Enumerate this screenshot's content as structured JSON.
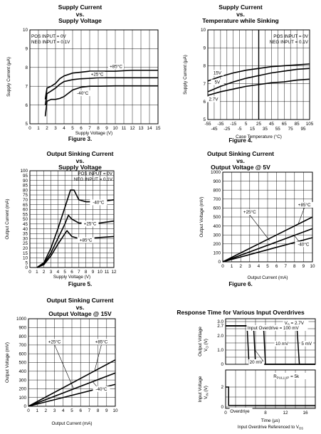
{
  "chart_data": [
    {
      "type": "line",
      "title_lines": [
        "Supply Current",
        "vs.",
        "Supply Voltage"
      ],
      "xlabel": "Supply Voltage (V)",
      "ylabel": "Supply Current (µA)",
      "xlim": [
        0,
        15
      ],
      "ylim": [
        5,
        10
      ],
      "xticks": [
        "0",
        "1",
        "2",
        "3",
        "4",
        "5",
        "6",
        "7",
        "8",
        "9",
        "10",
        "11",
        "12",
        "13",
        "14",
        "15"
      ],
      "yticks": [
        "5",
        "6",
        "7",
        "8",
        "9",
        "10"
      ],
      "grid": true,
      "note_lines": [
        "POS INPUT = 0V",
        "NEG INPUT = 0.1V"
      ],
      "figure_label": "Figure 3.",
      "series": [
        {
          "name": "+85°C",
          "x": [
            1.8,
            2.0,
            2.5,
            3.0,
            3.5,
            4.0,
            5.0,
            6.0,
            7.0,
            8.0,
            10.0,
            12.0,
            15.0
          ],
          "y": [
            6.3,
            6.9,
            7.0,
            7.15,
            7.4,
            7.55,
            7.7,
            7.75,
            7.8,
            7.8,
            7.8,
            7.85,
            7.85
          ]
        },
        {
          "name": "+25°C",
          "x": [
            1.8,
            2.0,
            2.5,
            3.0,
            3.5,
            4.0,
            5.0,
            6.0,
            7.0,
            8.0,
            10.0,
            12.0,
            15.0
          ],
          "y": [
            6.0,
            6.6,
            6.75,
            6.9,
            7.1,
            7.25,
            7.35,
            7.4,
            7.42,
            7.45,
            7.45,
            7.45,
            7.45
          ]
        },
        {
          "name": "-40°C",
          "x": [
            1.8,
            2.0,
            2.5,
            3.0,
            3.5,
            4.0,
            5.0,
            6.0,
            7.0,
            8.0,
            10.0,
            12.0,
            15.0
          ],
          "y": [
            5.4,
            6.2,
            6.3,
            6.3,
            6.35,
            6.45,
            6.8,
            6.95,
            7.0,
            7.0,
            7.02,
            7.02,
            7.02
          ]
        }
      ]
    },
    {
      "type": "line",
      "title_lines": [
        "Supply Current",
        "vs.",
        "Temperature while Sinking"
      ],
      "xlabel": "Case Temperature (°C)",
      "ylabel": "Supply Current (µA)",
      "xlim": [
        -55,
        105
      ],
      "ylim": [
        5,
        10
      ],
      "xticks_top": [
        "-55",
        "-35",
        "-15",
        "5",
        "25",
        "45",
        "65",
        "85",
        "105"
      ],
      "xticks_bottom": [
        "-45",
        "-25",
        "-5",
        "15",
        "35",
        "55",
        "75",
        "95"
      ],
      "yticks": [
        "5",
        "6",
        "7",
        "8",
        "9",
        "10"
      ],
      "grid": true,
      "note_lines": [
        "POS INPUT = 0V",
        "NEG INPUT = 0.1V"
      ],
      "figure_label": "Figure 4.",
      "series": [
        {
          "name": "15V",
          "x": [
            -55,
            -35,
            -15,
            5,
            25,
            45,
            65,
            85,
            105
          ],
          "y": [
            7.15,
            7.4,
            7.6,
            7.75,
            7.85,
            7.95,
            8.0,
            8.05,
            8.1
          ]
        },
        {
          "name": "5V",
          "x": [
            -55,
            -35,
            -15,
            5,
            25,
            45,
            65,
            85,
            105
          ],
          "y": [
            6.55,
            6.85,
            7.1,
            7.3,
            7.45,
            7.6,
            7.7,
            7.8,
            7.85
          ]
        },
        {
          "name": "2.7V",
          "x": [
            -55,
            -35,
            -15,
            5,
            25,
            45,
            65,
            85,
            105
          ],
          "y": [
            6.35,
            6.55,
            6.7,
            6.85,
            6.95,
            7.05,
            7.1,
            7.2,
            7.25
          ]
        }
      ]
    },
    {
      "type": "line",
      "title_lines": [
        "Output Sinking Current",
        "vs.",
        "Supply Voltage"
      ],
      "xlabel": "Supply Voltage (V)",
      "ylabel": "Output Current (mA)",
      "xlim": [
        0,
        12
      ],
      "ylim": [
        0,
        100
      ],
      "xticks": [
        "0",
        "1",
        "2",
        "3",
        "4",
        "5",
        "6",
        "7",
        "8",
        "9",
        "10",
        "11",
        "12"
      ],
      "yticks": [
        "0",
        "5",
        "10",
        "15",
        "20",
        "25",
        "30",
        "35",
        "40",
        "45",
        "50",
        "55",
        "60",
        "65",
        "70",
        "75",
        "80",
        "85",
        "90",
        "95",
        "100"
      ],
      "grid": true,
      "note_lines": [
        "POS INPUT = 0V",
        "NEG INPUT = 0.1V"
      ],
      "figure_label": "Figure 5.",
      "series": [
        {
          "name": "-40°C",
          "x": [
            1.0,
            2.0,
            3.0,
            4.0,
            5.0,
            5.8,
            6.3,
            7.0,
            8.0,
            10.0,
            12.0
          ],
          "y": [
            0,
            5,
            20,
            40,
            62,
            80,
            80,
            70,
            68,
            68,
            70
          ]
        },
        {
          "name": "+25°C",
          "x": [
            1.0,
            2.0,
            3.0,
            4.0,
            5.0,
            5.5,
            6.0,
            7.0,
            8.0,
            10.0,
            12.0
          ],
          "y": [
            0,
            4,
            15,
            30,
            45,
            54,
            50,
            46,
            46,
            46,
            48
          ]
        },
        {
          "name": "+85°C",
          "x": [
            1.0,
            2.0,
            3.0,
            4.0,
            5.0,
            5.3,
            6.0,
            7.0,
            8.0,
            10.0,
            12.0
          ],
          "y": [
            0,
            3,
            12,
            24,
            35,
            38,
            32,
            30,
            30,
            31,
            32
          ]
        }
      ]
    },
    {
      "type": "line",
      "title_lines": [
        "Output Sinking Current",
        "vs.",
        "Output Voltage @ 5V"
      ],
      "xlabel": "Output Current (mA)",
      "ylabel": "Output Voltage (mV)",
      "xlim": [
        0,
        10
      ],
      "ylim": [
        0,
        1000
      ],
      "xticks": [
        "0",
        "1",
        "2",
        "3",
        "4",
        "5",
        "6",
        "7",
        "8",
        "9",
        "10"
      ],
      "yticks": [
        "0",
        "100",
        "200",
        "300",
        "400",
        "500",
        "600",
        "700",
        "800",
        "900",
        "1000"
      ],
      "grid": true,
      "figure_label": "Figure 6.",
      "series": [
        {
          "name": "+85°C",
          "x": [
            0,
            10
          ],
          "y": [
            0,
            500
          ]
        },
        {
          "name": "+25°C",
          "x": [
            0,
            10
          ],
          "y": [
            0,
            370
          ]
        },
        {
          "name": "-40°C",
          "x": [
            0,
            10
          ],
          "y": [
            0,
            270
          ]
        }
      ]
    },
    {
      "type": "line",
      "title_lines": [
        "Output Sinking Current",
        "vs.",
        "Output Voltage @ 15V"
      ],
      "xlabel": "Output Current (mA)",
      "ylabel": "Output Voltage (mV)",
      "xlim": [
        0,
        10
      ],
      "ylim": [
        0,
        1000
      ],
      "xticks": [
        "0",
        "1",
        "2",
        "3",
        "4",
        "5",
        "6",
        "7",
        "8",
        "9",
        "10"
      ],
      "yticks": [
        "0",
        "100",
        "200",
        "300",
        "400",
        "500",
        "600",
        "700",
        "800",
        "900",
        "1000"
      ],
      "grid": true,
      "series": [
        {
          "name": "+85°C",
          "x": [
            0,
            10
          ],
          "y": [
            0,
            530
          ]
        },
        {
          "name": "+25°C",
          "x": [
            0,
            10
          ],
          "y": [
            0,
            380
          ]
        },
        {
          "name": "-40°C",
          "x": [
            0,
            10
          ],
          "y": [
            0,
            250
          ]
        }
      ]
    },
    {
      "type": "line",
      "title": "Response Time for Various Input Overdrives",
      "xlabel": "Time (µs)",
      "xlabel_note": "Input Overdrive Referenced to V",
      "xlabel_note_sub": "OS",
      "ylabel_top": "Output Voltage",
      "ylabel_top_unit": "V",
      "ylabel_top_sub": "O",
      "ylabel_top_suffix": "(V)",
      "ylabel_bottom": "Input Voltage",
      "ylabel_bottom_unit": "V",
      "ylabel_bottom_sub": "IN",
      "ylabel_bottom_suffix": "(V)",
      "xlim": [
        0,
        18
      ],
      "xticks": [
        "0",
        "4",
        "8",
        "12",
        "16"
      ],
      "yticks_top": [
        "3.0",
        "2.7",
        "2.0",
        "1.0",
        "0"
      ],
      "yticks_bottom": [
        "2",
        "0"
      ],
      "annotations": {
        "vs": "V",
        "vs_sub": "S",
        "vs_value": " = 2.7V",
        "overdrive_100": "Input Overdrive = 100 mV",
        "od_10": "10 mV",
        "od_5": "5 mV",
        "od_20": "20 mV",
        "rpullup": "R",
        "rpullup_sub": "PULLUP",
        "rpullup_value": " = 5k",
        "overdrive": "Overdrive"
      },
      "series": [
        {
          "name": "100 mV",
          "x": [
            0,
            4.3,
            4.7,
            18
          ],
          "y": [
            2.7,
            2.7,
            0,
            0
          ]
        },
        {
          "name": "20 mV",
          "x": [
            0,
            5.6,
            6.0,
            18
          ],
          "y": [
            2.7,
            2.7,
            0,
            0
          ]
        },
        {
          "name": "10 mV",
          "x": [
            0,
            7.6,
            8.0,
            18
          ],
          "y": [
            2.7,
            2.7,
            0,
            0
          ]
        },
        {
          "name": "5 mV",
          "x": [
            0,
            14.3,
            14.8,
            18
          ],
          "y": [
            2.7,
            2.7,
            0,
            0
          ]
        }
      ]
    }
  ]
}
